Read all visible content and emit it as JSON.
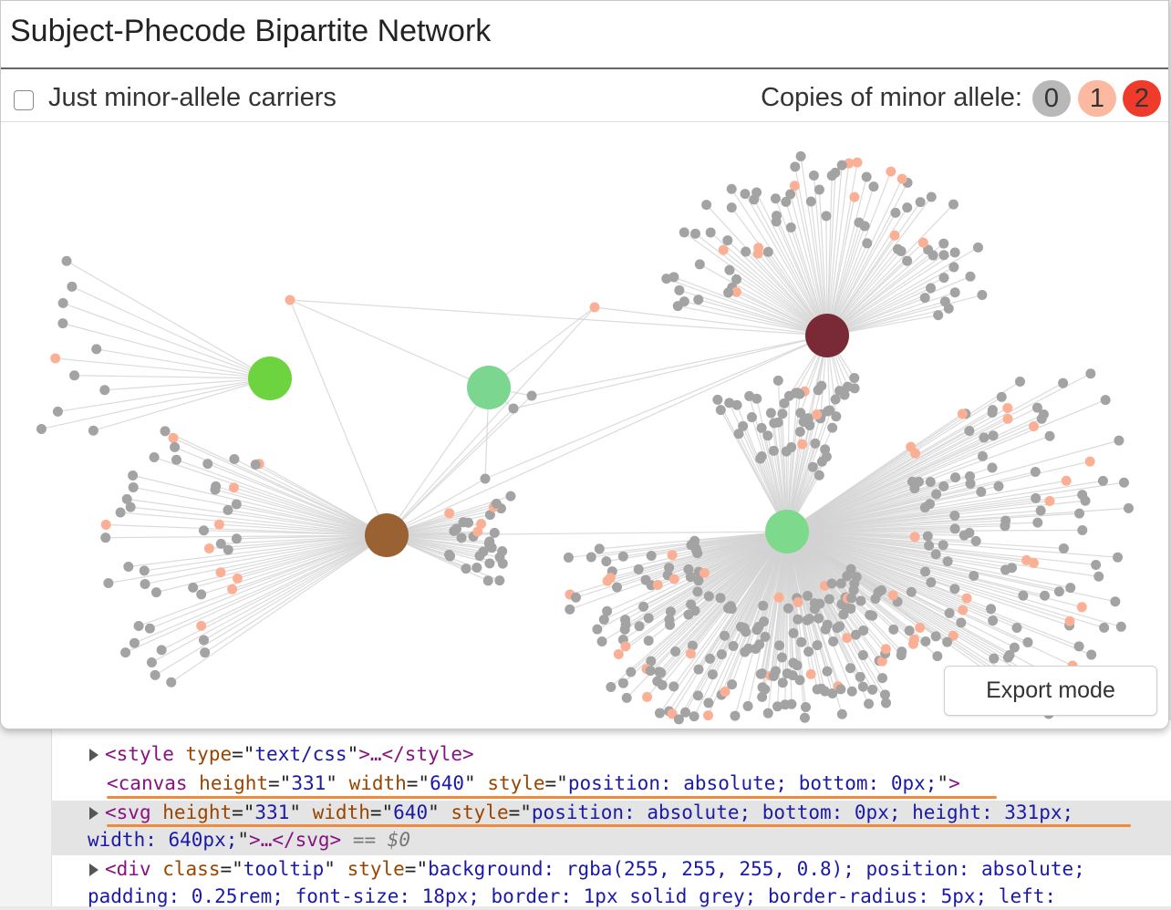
{
  "title": "Subject-Phecode Bipartite Network",
  "controls": {
    "checkbox_label": "Just minor-allele carriers",
    "checkbox_checked": false,
    "copies_label": "Copies of minor allele:",
    "copies": [
      {
        "label": "0",
        "color": "#b8b8b8"
      },
      {
        "label": "1",
        "color": "#fbb9a1"
      },
      {
        "label": "2",
        "color": "#ef3b2c"
      }
    ]
  },
  "export_button": "Export mode",
  "network_colors": {
    "subject_0": "#a3a3a3",
    "subject_1": "#fbb096",
    "edge": "#d2d2d2"
  },
  "phecodes": [
    {
      "id": "p-green",
      "color": "#6dd33f"
    },
    {
      "id": "p-mint",
      "color": "#7bd690"
    },
    {
      "id": "p-maroon",
      "color": "#792a36"
    },
    {
      "id": "p-brown",
      "color": "#9a6233"
    },
    {
      "id": "p-mint-large",
      "color": "#7dd98c"
    }
  ],
  "devtools": {
    "line1": {
      "tag": "style",
      "attrs": [
        [
          "type",
          "text/css"
        ]
      ],
      "tail": "…</style>"
    },
    "line2": {
      "tag": "canvas",
      "attrs": [
        [
          "height",
          "331"
        ],
        [
          "width",
          "640"
        ],
        [
          "style",
          "position: absolute; bottom: 0px;"
        ]
      ]
    },
    "line3": {
      "tag": "svg",
      "attrs": [
        [
          "height",
          "331"
        ],
        [
          "width",
          "640"
        ],
        [
          "style",
          "position: absolute; bottom: 0px; height: 331px;"
        ]
      ]
    },
    "line3b": {
      "prefix": "width: 640px;",
      "tail": "…</svg>",
      "suffix": "== $0"
    },
    "line4": {
      "tag": "div",
      "attrs": [
        [
          "class",
          "tooltip"
        ],
        [
          "style",
          "background: rgba(255, 255, 255, 0.8); position: absolute;"
        ]
      ]
    },
    "line4b": "padding: 0.25rem; font-size: 18px; border: 1px solid grey; border-radius: 5px; left:"
  }
}
